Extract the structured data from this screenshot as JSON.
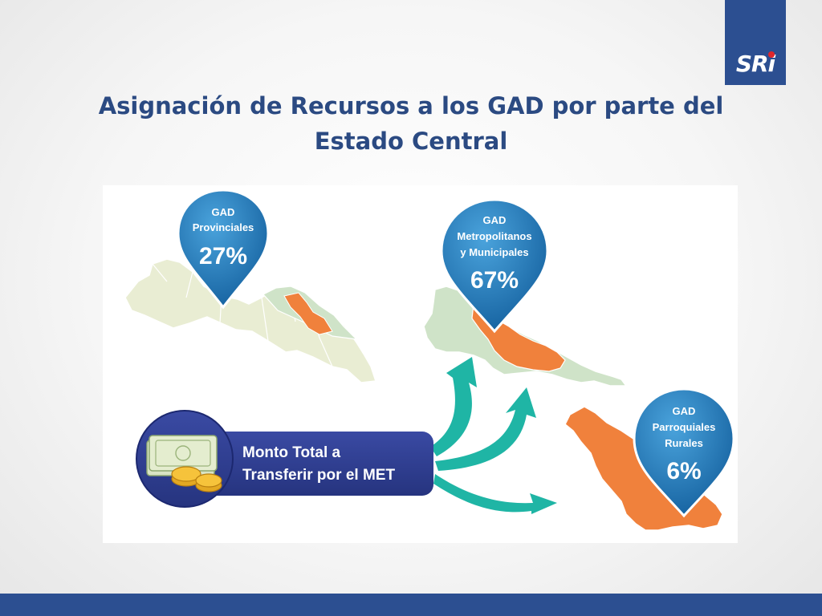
{
  "slide": {
    "title_line1": "Asignación de Recursos a los GAD por parte del",
    "title_line2": "Estado Central",
    "logo_text": "SRi"
  },
  "diagram": {
    "source": {
      "line1": "Monto Total a",
      "line2": "Transferir por el MET"
    },
    "pins": [
      {
        "lines": [
          "GAD",
          "Provinciales"
        ],
        "percent": "27%"
      },
      {
        "lines": [
          "GAD",
          "Metropolitanos",
          "y Municipales"
        ],
        "percent": "67%"
      },
      {
        "lines": [
          "GAD",
          "Parroquiales",
          "Rurales"
        ],
        "percent": "6%"
      }
    ]
  },
  "colors": {
    "brand_blue": "#2c4f91",
    "title_blue": "#2b4a82",
    "pin_blue": "#1f74b8",
    "arrow_teal": "#1fb5a5",
    "map_green": "#cfe3c8",
    "map_orange": "#f0813c",
    "panel_navy": "#2e3e93"
  }
}
